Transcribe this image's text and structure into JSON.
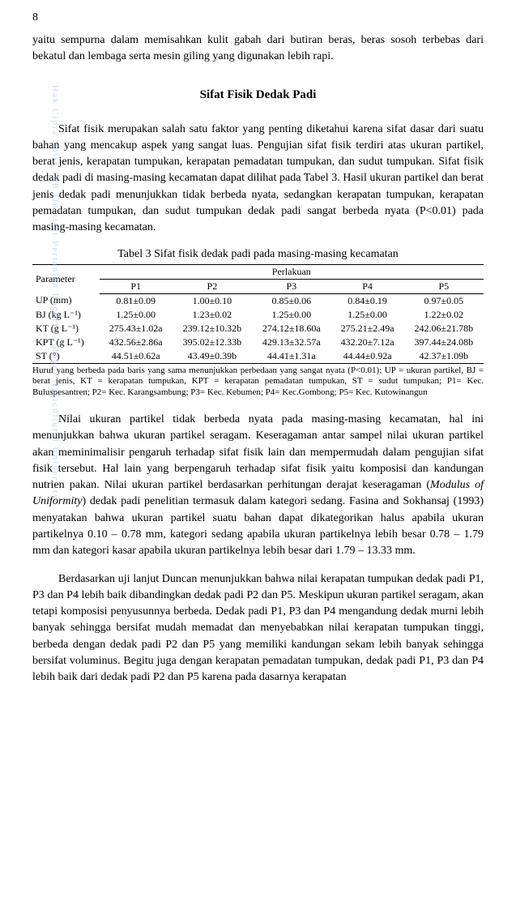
{
  "page_number": "8",
  "intro_para": "yaitu sempurna dalam memisahkan kulit gabah dari butiran beras, beras sosoh terbebas dari bekatul dan lembaga serta mesin giling yang digunakan lebih rapi.",
  "section_title": "Sifat Fisik Dedak Padi",
  "body_para_1": "Sifat fisik merupakan salah satu faktor yang penting diketahui karena sifat dasar dari suatu bahan yang mencakup aspek yang sangat luas. Pengujian sifat fisik terdiri atas ukuran partikel, berat jenis, kerapatan tumpukan, kerapatan pemadatan tumpukan, dan sudut tumpukan. Sifat fisik dedak padi di masing-masing kecamatan dapat dilihat pada Tabel 3. Hasil ukuran partikel dan berat jenis dedak padi menunjukkan tidak berbeda nyata, sedangkan kerapatan tumpukan, kerapatan pemadatan tumpukan, dan sudut tumpukan dedak padi sangat berbeda nyata (P<0.01) pada masing-masing kecamatan.",
  "table": {
    "caption": "Tabel 3  Sifat fisik dedak padi pada masing-masing kecamatan",
    "param_header": "Parameter",
    "group_header": "Perlakuan",
    "col_headers": [
      "P1",
      "P2",
      "P3",
      "P4",
      "P5"
    ],
    "rows": [
      {
        "param": "UP (mm)",
        "cells": [
          "0.81±0.09",
          "1.00±0.10",
          "0.85±0.06",
          "0.84±0.19",
          "0.97±0.05"
        ]
      },
      {
        "param": "BJ (kg L⁻¹)",
        "cells": [
          "1.25±0.00",
          "1.23±0.02",
          "1.25±0.00",
          "1.25±0.00",
          "1.22±0.02"
        ]
      },
      {
        "param": "KT (g L⁻¹)",
        "cells": [
          "275.43±1.02a",
          "239.12±10.32b",
          "274.12±18.60a",
          "275.21±2.49a",
          "242.06±21.78b"
        ]
      },
      {
        "param": "KPT (g L⁻¹)",
        "cells": [
          "432.56±2.86a",
          "395.02±12.33b",
          "429.13±32.57a",
          "432.20±7.12a",
          "397.44±24.08b"
        ]
      },
      {
        "param": "ST (°)",
        "cells": [
          "44.51±0.62a",
          "43.49±0.39b",
          "44.41±1.31a",
          "44.44±0.92a",
          "42.37±1.09b"
        ]
      }
    ]
  },
  "footnote": "Huruf yang berbeda pada baris yang sama menunjukkan perbedaan yang sangat nyata (P<0.01);  UP = ukuran partikel, BJ = berat jenis, KT = kerapatan tumpukan, KPT = kerapatan pemadatan tumpukan, ST = sudut tumpukan; P1= Kec. Buluspesantren; P2= Kec. Karangsambung; P3= Kec. Kebumen; P4= Kec.Gombong; P5= Kec. Kutowinangun",
  "body_para_2a": "Nilai ukuran partikel tidak berbeda nyata pada masing-masing kecamatan, hal ini menunjukkan bahwa ukuran partikel seragam. Keseragaman antar sampel nilai ukuran partikel akan meminimalisir pengaruh terhadap sifat fisik lain dan mempermudah dalam pengujian sifat fisik tersebut. Hal lain yang berpengaruh terhadap sifat fisik yaitu komposisi dan kandungan nutrien pakan. Nilai ukuran partikel berdasarkan perhitungan derajat keseragaman (",
  "body_para_2_italic": "Modulus of Uniformity",
  "body_para_2b": ") dedak padi penelitian termasuk dalam kategori sedang. Fasina and Sokhansaj (1993) menyatakan bahwa ukuran partikel suatu bahan dapat dikategorikan halus apabila ukuran partikelnya 0.10 – 0.78 mm, kategori sedang apabila ukuran partikelnya lebih besar 0.78 – 1.79 mm dan kategori kasar apabila ukuran partikelnya lebih besar dari 1.79 – 13.33 mm.",
  "body_para_3": "Berdasarkan uji lanjut Duncan menunjukkan bahwa nilai kerapatan tumpukan dedak padi P1, P3 dan P4 lebih baik dibandingkan dedak padi P2 dan P5. Meskipun ukuran partikel seragam, akan tetapi komposisi penyusunnya berbeda. Dedak padi P1, P3 dan P4 mengandung dedak murni lebih banyak sehingga bersifat mudah memadat dan menyebabkan nilai kerapatan tumpukan tinggi, berbeda dengan dedak padi P2 dan P5 yang memiliki kandungan sekam lebih banyak sehingga bersifat voluminus. Begitu juga dengan kerapatan pemadatan tumpukan, dedak padi P1, P3 dan P4 lebih baik dari dedak padi P2 dan P5 karena pada dasarnya kerapatan",
  "watermark_text": "Hak Cipta Milik IPB (Institut Pertanian Bogor) — Bogor Agricultural University"
}
